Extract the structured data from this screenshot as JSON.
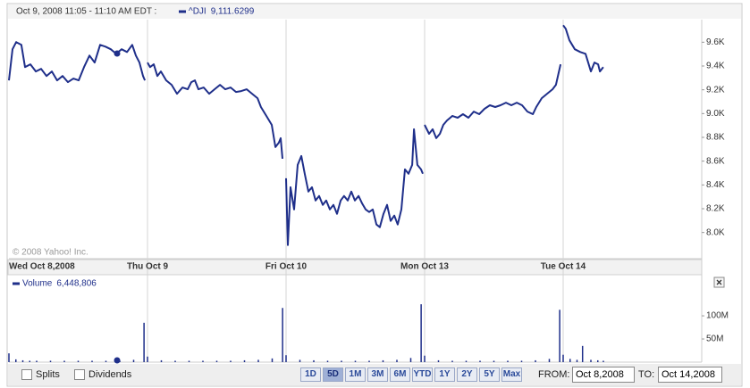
{
  "header": {
    "time": "Oct 9, 2008 11:05 - 11:10 AM EDT :"
  },
  "chart_data": [
    {
      "type": "line",
      "annotation": "© 2008 Yahoo! Inc.",
      "quote": "9,111.6299",
      "series": [
        {
          "name": "^DJI",
          "color": "#1f2f8a",
          "x": [
            0,
            0.026,
            0.052,
            0.09,
            0.116,
            0.155,
            0.194,
            0.232,
            0.271,
            0.31,
            0.348,
            0.387,
            0.426,
            0.465,
            0.503,
            0.542,
            0.581,
            0.619,
            0.658,
            0.697,
            0.735,
            0.774,
            0.813,
            0.852,
            0.89,
            0.916,
            0.942,
            0.968,
            0.981,
            null,
            1,
            1.019,
            1.045,
            1.071,
            1.097,
            1.135,
            1.174,
            1.213,
            1.252,
            1.29,
            1.316,
            1.342,
            1.368,
            1.406,
            1.445,
            1.484,
            1.523,
            1.561,
            1.6,
            1.639,
            1.677,
            1.716,
            1.755,
            1.794,
            1.819,
            1.858,
            1.897,
            1.923,
            1.948,
            1.961,
            1.974,
            null,
            2,
            2.013,
            2.032,
            2.058,
            2.084,
            2.11,
            2.135,
            2.161,
            2.187,
            2.213,
            2.239,
            2.265,
            2.29,
            2.316,
            2.342,
            2.368,
            2.394,
            2.419,
            2.445,
            2.471,
            2.497,
            2.523,
            2.548,
            2.574,
            2.6,
            2.626,
            2.652,
            2.677,
            2.703,
            2.729,
            2.755,
            2.781,
            2.806,
            2.832,
            2.858,
            2.884,
            2.91,
            2.923,
            2.948,
            2.974,
            2.987,
            null,
            3,
            3.032,
            3.058,
            3.084,
            3.11,
            3.135,
            3.161,
            3.2,
            3.239,
            3.277,
            3.316,
            3.355,
            3.394,
            3.432,
            3.471,
            3.51,
            3.548,
            3.587,
            3.626,
            3.665,
            3.703,
            3.742,
            3.781,
            3.806,
            3.845,
            3.884,
            3.923,
            3.948,
            3.981,
            null,
            4,
            4.019,
            4.045,
            4.084,
            4.123,
            4.161,
            4.2,
            4.226,
            4.252,
            4.265,
            4.29
          ],
          "values": [
            9279,
            9541,
            9601,
            9578,
            9391,
            9414,
            9354,
            9376,
            9316,
            9354,
            9279,
            9316,
            9264,
            9294,
            9279,
            9391,
            9488,
            9429,
            9578,
            9563,
            9541,
            9503,
            9541,
            9518,
            9578,
            9488,
            9429,
            9316,
            9279,
            null,
            9429,
            9391,
            9414,
            9316,
            9354,
            9279,
            9242,
            9167,
            9219,
            9204,
            9264,
            9279,
            9204,
            9219,
            9167,
            9204,
            9242,
            9204,
            9219,
            9182,
            9189,
            9204,
            9167,
            9129,
            9055,
            8980,
            8905,
            8718,
            8755,
            8793,
            8621,
            null,
            8456,
            7895,
            8381,
            8194,
            8568,
            8643,
            8494,
            8344,
            8381,
            8269,
            8307,
            8232,
            8269,
            8194,
            8232,
            8157,
            8269,
            8307,
            8269,
            8344,
            8269,
            8307,
            8247,
            8194,
            8172,
            8194,
            8067,
            8045,
            8157,
            8232,
            8097,
            8142,
            8067,
            8194,
            8531,
            8494,
            8568,
            8868,
            8568,
            8531,
            8494,
            null,
            8905,
            8830,
            8868,
            8793,
            8830,
            8905,
            8942,
            8980,
            8965,
            8995,
            8965,
            9017,
            8995,
            9040,
            9070,
            9055,
            9070,
            9092,
            9070,
            9092,
            9070,
            9017,
            8995,
            9055,
            9129,
            9167,
            9204,
            9242,
            9414,
            null,
            9743,
            9713,
            9616,
            9541,
            9518,
            9503,
            9354,
            9429,
            9414,
            9354,
            9391
          ]
        }
      ],
      "xlim": [
        0,
        5
      ],
      "xticks": [
        {
          "value": 0,
          "label": "Wed Oct 8,2008"
        },
        {
          "value": 1,
          "label": "Thu Oct 9"
        },
        {
          "value": 2,
          "label": "Fri Oct 10"
        },
        {
          "value": 3,
          "label": "Mon Oct 13"
        },
        {
          "value": 4,
          "label": "Tue Oct 14"
        }
      ],
      "ylim": [
        7780,
        9790
      ],
      "yticks": [
        {
          "value": 8000,
          "label": "8.0K"
        },
        {
          "value": 8200,
          "label": "8.2K"
        },
        {
          "value": 8400,
          "label": "8.4K"
        },
        {
          "value": 8600,
          "label": "8.6K"
        },
        {
          "value": 8800,
          "label": "8.8K"
        },
        {
          "value": 9000,
          "label": "9.0K"
        },
        {
          "value": 9200,
          "label": "9.2K"
        },
        {
          "value": 9400,
          "label": "9.4K"
        },
        {
          "value": 9600,
          "label": "9.6K"
        }
      ]
    },
    {
      "type": "bar",
      "quote": "6,448,806",
      "series": [
        {
          "name": "Volume",
          "color": "#1f2f8a",
          "x": [
            0,
            0.05,
            0.1,
            0.15,
            0.2,
            0.3,
            0.4,
            0.5,
            0.6,
            0.7,
            0.8,
            0.9,
            0.975,
            1,
            1.1,
            1.2,
            1.3,
            1.4,
            1.5,
            1.6,
            1.7,
            1.8,
            1.9,
            1.975,
            2,
            2.1,
            2.2,
            2.3,
            2.4,
            2.5,
            2.6,
            2.7,
            2.8,
            2.9,
            2.975,
            3,
            3.1,
            3.2,
            3.3,
            3.4,
            3.5,
            3.6,
            3.7,
            3.8,
            3.9,
            3.975,
            4,
            4.05,
            4.1,
            4.14,
            4.2,
            4.25,
            4.29
          ],
          "values": [
            19000000,
            6000000,
            4000000,
            3000000,
            3000000,
            3000000,
            3000000,
            3000000,
            3000000,
            3000000,
            3000000,
            5000000,
            85000000,
            12000000,
            4000000,
            3000000,
            3000000,
            3000000,
            3000000,
            3000000,
            4000000,
            5000000,
            8000000,
            117000000,
            15000000,
            5000000,
            4000000,
            3000000,
            3000000,
            3000000,
            3000000,
            4000000,
            5000000,
            9000000,
            125000000,
            14000000,
            4000000,
            3000000,
            3000000,
            3000000,
            3000000,
            3000000,
            3000000,
            4000000,
            7000000,
            113000000,
            16000000,
            7000000,
            5000000,
            35000000,
            5000000,
            4000000,
            3000000
          ]
        }
      ],
      "xlim": [
        0,
        5
      ],
      "ylim": [
        0,
        156000000
      ],
      "yticks": [
        {
          "value": 50000000,
          "label": "50M"
        },
        {
          "value": 100000000,
          "label": "100M"
        }
      ]
    }
  ],
  "controls": {
    "splits": "Splits",
    "dividends": "Dividends",
    "ranges": [
      "1D",
      "5D",
      "1M",
      "3M",
      "6M",
      "YTD",
      "1Y",
      "2Y",
      "5Y",
      "Max"
    ],
    "selected": 1,
    "from_label": "FROM:",
    "from": "Oct 8,2008",
    "to_label": "TO:",
    "to": "Oct 14,2008"
  }
}
